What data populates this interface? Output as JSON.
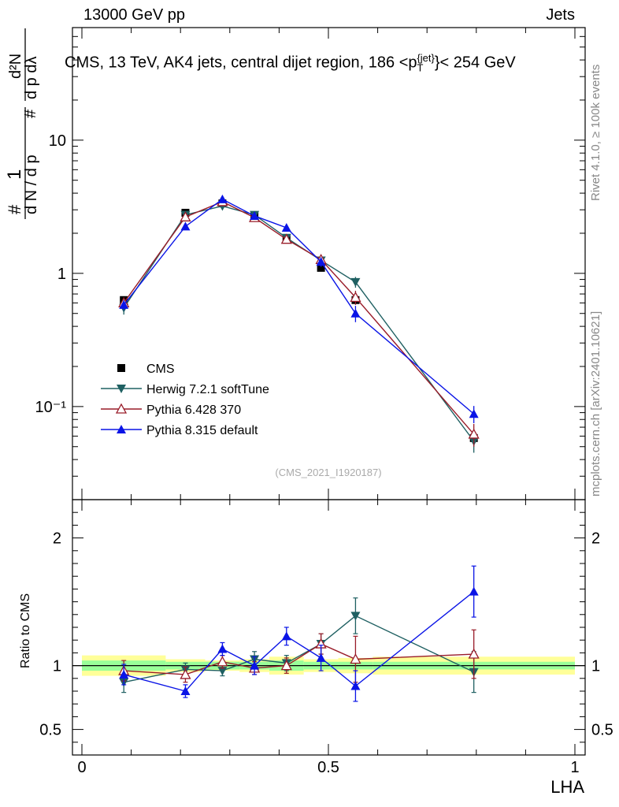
{
  "header": {
    "left": "13000 GeV pp",
    "right": "Jets"
  },
  "plot_title": "CMS, 13 TeV, AK4 jets, central dijet region, 186 <p",
  "plot_title_sup": "{jet}",
  "plot_title_sub": "T",
  "plot_title_end": "}< 254 GeV",
  "side_text": {
    "rivet": "Rivet 4.1.0, ≥ 100k events",
    "mcplots": "mcplots.cern.ch [arXiv:2401.10621]"
  },
  "watermark": "(CMS_2021_I1920187)",
  "ylabel_main": "1 / (dN/dpT) · d²N/(dpT dλ)",
  "ratio_ylabel": "Ratio to CMS",
  "xlabel": "LHA",
  "chart_data": {
    "type": "line",
    "x_range": [
      0,
      1
    ],
    "x_ticks": [
      "0",
      "0.5",
      "1"
    ],
    "main": {
      "yscale": "log",
      "ylim": [
        0.02,
        70
      ],
      "y_ticks": [
        "10⁻¹",
        "1",
        "10"
      ],
      "y_tick_values": [
        0.1,
        1,
        10
      ]
    },
    "ratio": {
      "ylim": [
        0.3,
        2.3
      ],
      "y_ticks": [
        "0.5",
        "1",
        "2"
      ],
      "y_tick_values": [
        0.5,
        1,
        2
      ]
    },
    "x": [
      0.085,
      0.21,
      0.285,
      0.35,
      0.415,
      0.485,
      0.555,
      0.795
    ],
    "data_bins": [
      [
        0,
        0.17
      ],
      [
        0.17,
        0.25
      ],
      [
        0.25,
        0.32
      ],
      [
        0.32,
        0.38
      ],
      [
        0.38,
        0.45
      ],
      [
        0.45,
        0.52
      ],
      [
        0.52,
        0.59
      ],
      [
        0.59,
        1.0
      ]
    ],
    "band_green": [
      0.04,
      0.03,
      0.03,
      0.03,
      0.04,
      0.03,
      0.03,
      0.03
    ],
    "band_yellow": [
      0.08,
      0.05,
      0.04,
      0.05,
      0.07,
      0.05,
      0.06,
      0.07
    ],
    "series": [
      {
        "name": "CMS",
        "color": "#000000",
        "marker": "square",
        "values": [
          0.63,
          2.85,
          3.35,
          2.7,
          1.8,
          1.1,
          0.63,
          0.058
        ],
        "errors": [
          0.02,
          0.05,
          0.06,
          0.05,
          0.04,
          0.03,
          0.02,
          0.004
        ]
      },
      {
        "name": "Herwig 7.2.1 softTune",
        "color": "#1f6062",
        "marker": "triangle-down",
        "values": [
          0.55,
          2.75,
          3.2,
          2.75,
          1.85,
          1.25,
          0.86,
          0.055
        ],
        "errors": [
          0.06,
          0.12,
          0.14,
          0.12,
          0.1,
          0.08,
          0.08,
          0.01
        ],
        "ratio": [
          0.87,
          0.97,
          0.96,
          1.05,
          1.02,
          1.17,
          1.39,
          0.95
        ],
        "ratio_err": [
          0.08,
          0.05,
          0.04,
          0.06,
          0.06,
          0.08,
          0.14,
          0.16
        ]
      },
      {
        "name": "Pythia 6.428 370",
        "color": "#991c29",
        "marker": "triangle-open",
        "values": [
          0.6,
          2.65,
          3.45,
          2.62,
          1.8,
          1.27,
          0.66,
          0.062
        ],
        "errors": [
          0.06,
          0.12,
          0.14,
          0.12,
          0.1,
          0.08,
          0.08,
          0.012
        ],
        "ratio": [
          0.96,
          0.93,
          1.03,
          0.98,
          1.0,
          1.17,
          1.05,
          1.09
        ],
        "ratio_err": [
          0.08,
          0.06,
          0.05,
          0.05,
          0.06,
          0.08,
          0.18,
          0.19
        ]
      },
      {
        "name": "Pythia 8.315 default",
        "color": "#0a14e6",
        "marker": "triangle-up",
        "values": [
          0.58,
          2.25,
          3.6,
          2.7,
          2.2,
          1.22,
          0.5,
          0.088
        ],
        "errors": [
          0.05,
          0.12,
          0.14,
          0.12,
          0.12,
          0.1,
          0.07,
          0.013
        ],
        "ratio": [
          0.93,
          0.8,
          1.13,
          1.0,
          1.23,
          1.06,
          0.84,
          1.58
        ],
        "ratio_err": [
          0.08,
          0.05,
          0.05,
          0.07,
          0.07,
          0.1,
          0.12,
          0.2
        ]
      }
    ]
  }
}
